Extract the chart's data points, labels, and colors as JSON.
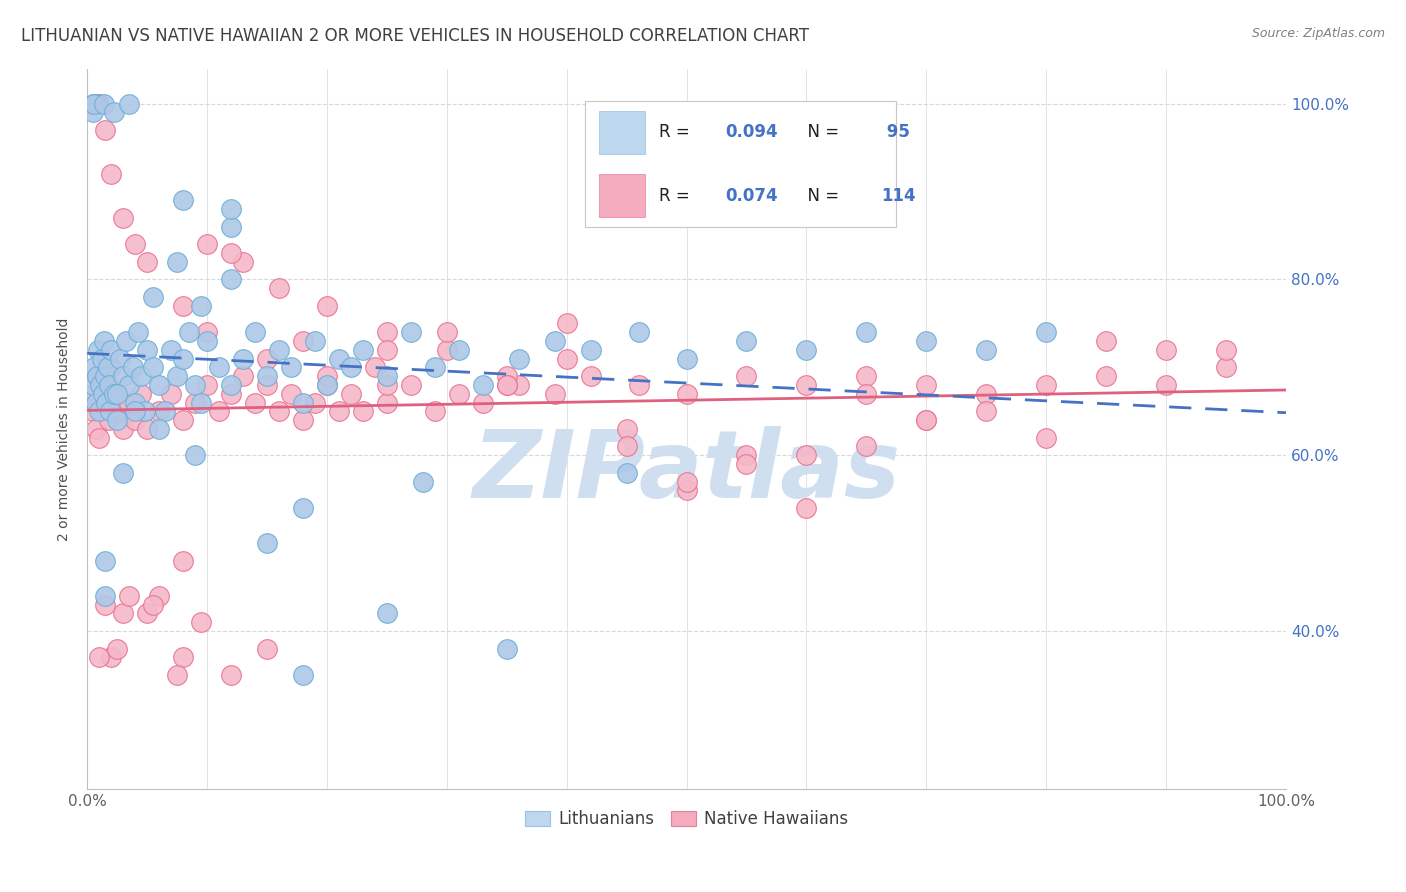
{
  "title": "LITHUANIAN VS NATIVE HAWAIIAN 2 OR MORE VEHICLES IN HOUSEHOLD CORRELATION CHART",
  "source": "Source: ZipAtlas.com",
  "ylabel": "2 or more Vehicles in Household",
  "ytick_labels": [
    "40.0%",
    "60.0%",
    "80.0%",
    "100.0%"
  ],
  "legend_label_blue": "Lithuanians",
  "legend_label_pink": "Native Hawaiians",
  "blue_scatter_edge": "#6BAED6",
  "blue_scatter_face": "#AEC8E8",
  "pink_scatter_edge": "#E87090",
  "pink_scatter_face": "#F4B8C8",
  "blue_line_color": "#4472C4",
  "pink_line_color": "#E06080",
  "blue_legend_face": "#BDD7EE",
  "blue_legend_edge": "#9DC0E0",
  "pink_legend_face": "#F4ACBE",
  "pink_legend_edge": "#E080A0",
  "watermark_color": "#D0DFF0",
  "background_color": "#FFFFFF",
  "grid_color": "#D8D8D8",
  "r_value_color": "#4472C4",
  "title_color": "#404040",
  "source_color": "#808080",
  "ylabel_color": "#505050",
  "N_blue": 95,
  "N_pink": 114,
  "R_blue": 0.094,
  "R_pink": 0.074,
  "xmin": 0.0,
  "xmax": 1.0,
  "ymin": 0.22,
  "ymax": 1.04,
  "yticks": [
    0.4,
    0.6,
    0.8,
    1.0
  ],
  "xtick_positions": [
    0.0,
    0.1,
    0.2,
    0.3,
    0.4,
    0.5,
    0.6,
    0.7,
    0.8,
    0.9,
    1.0
  ],
  "blue_x": [
    0.005,
    0.006,
    0.007,
    0.008,
    0.009,
    0.01,
    0.011,
    0.012,
    0.013,
    0.014,
    0.015,
    0.016,
    0.017,
    0.018,
    0.019,
    0.02,
    0.022,
    0.025,
    0.027,
    0.03,
    0.032,
    0.035,
    0.038,
    0.04,
    0.042,
    0.045,
    0.048,
    0.05,
    0.055,
    0.06,
    0.065,
    0.07,
    0.075,
    0.08,
    0.085,
    0.09,
    0.095,
    0.1,
    0.11,
    0.12,
    0.13,
    0.14,
    0.15,
    0.16,
    0.17,
    0.18,
    0.19,
    0.2,
    0.21,
    0.22,
    0.23,
    0.25,
    0.27,
    0.29,
    0.31,
    0.33,
    0.36,
    0.39,
    0.42,
    0.46,
    0.5,
    0.55,
    0.6,
    0.65,
    0.7,
    0.75,
    0.8,
    0.12,
    0.08,
    0.03,
    0.015,
    0.007,
    0.005,
    0.005,
    0.006,
    0.014,
    0.022,
    0.035,
    0.055,
    0.075,
    0.095,
    0.12,
    0.15,
    0.18,
    0.25,
    0.35,
    0.45,
    0.28,
    0.18,
    0.12,
    0.09,
    0.06,
    0.04,
    0.025,
    0.015
  ],
  "blue_y": [
    0.68,
    0.7,
    0.66,
    0.69,
    0.72,
    0.65,
    0.68,
    0.71,
    0.67,
    0.73,
    0.69,
    0.66,
    0.7,
    0.68,
    0.65,
    0.72,
    0.67,
    0.64,
    0.71,
    0.69,
    0.73,
    0.68,
    0.7,
    0.66,
    0.74,
    0.69,
    0.65,
    0.72,
    0.7,
    0.68,
    0.65,
    0.72,
    0.69,
    0.71,
    0.74,
    0.68,
    0.66,
    0.73,
    0.7,
    0.68,
    0.71,
    0.74,
    0.69,
    0.72,
    0.7,
    0.66,
    0.73,
    0.68,
    0.71,
    0.7,
    0.72,
    0.69,
    0.74,
    0.7,
    0.72,
    0.68,
    0.71,
    0.73,
    0.72,
    0.74,
    0.71,
    0.73,
    0.72,
    0.74,
    0.73,
    0.72,
    0.74,
    0.86,
    0.89,
    0.58,
    0.44,
    1.0,
    1.0,
    0.99,
    1.0,
    1.0,
    0.99,
    1.0,
    0.78,
    0.82,
    0.77,
    0.8,
    0.5,
    0.54,
    0.42,
    0.38,
    0.58,
    0.57,
    0.35,
    0.88,
    0.6,
    0.63,
    0.65,
    0.67,
    0.48
  ],
  "pink_x": [
    0.005,
    0.006,
    0.007,
    0.008,
    0.009,
    0.01,
    0.012,
    0.015,
    0.018,
    0.02,
    0.025,
    0.03,
    0.035,
    0.04,
    0.045,
    0.05,
    0.06,
    0.07,
    0.08,
    0.09,
    0.1,
    0.11,
    0.12,
    0.13,
    0.14,
    0.15,
    0.16,
    0.17,
    0.18,
    0.19,
    0.2,
    0.21,
    0.22,
    0.23,
    0.25,
    0.27,
    0.29,
    0.31,
    0.33,
    0.36,
    0.39,
    0.42,
    0.46,
    0.5,
    0.55,
    0.6,
    0.65,
    0.7,
    0.75,
    0.8,
    0.85,
    0.9,
    0.95,
    0.1,
    0.08,
    0.05,
    0.03,
    0.02,
    0.015,
    0.01,
    0.008,
    0.006,
    0.04,
    0.06,
    0.08,
    0.1,
    0.13,
    0.16,
    0.2,
    0.25,
    0.3,
    0.4,
    0.5,
    0.6,
    0.7,
    0.8,
    0.9,
    0.15,
    0.2,
    0.25,
    0.3,
    0.35,
    0.4,
    0.45,
    0.5,
    0.55,
    0.6,
    0.65,
    0.7,
    0.12,
    0.18,
    0.24,
    0.35,
    0.45,
    0.55,
    0.65,
    0.75,
    0.85,
    0.95,
    0.35,
    0.25,
    0.15,
    0.08,
    0.05,
    0.03,
    0.02,
    0.01,
    0.015,
    0.025,
    0.035,
    0.055,
    0.075,
    0.095,
    0.12
  ],
  "pink_y": [
    0.65,
    0.67,
    0.63,
    0.66,
    0.69,
    0.62,
    0.65,
    0.68,
    0.64,
    0.7,
    0.65,
    0.63,
    0.66,
    0.64,
    0.67,
    0.63,
    0.65,
    0.67,
    0.64,
    0.66,
    0.68,
    0.65,
    0.67,
    0.69,
    0.66,
    0.68,
    0.65,
    0.67,
    0.64,
    0.66,
    0.68,
    0.65,
    0.67,
    0.65,
    0.66,
    0.68,
    0.65,
    0.67,
    0.66,
    0.68,
    0.67,
    0.69,
    0.68,
    0.67,
    0.69,
    0.68,
    0.69,
    0.68,
    0.67,
    0.68,
    0.69,
    0.68,
    0.7,
    0.74,
    0.77,
    0.82,
    0.87,
    0.92,
    0.97,
    1.0,
    1.0,
    1.0,
    0.84,
    0.44,
    0.48,
    0.84,
    0.82,
    0.79,
    0.77,
    0.74,
    0.72,
    0.75,
    0.56,
    0.6,
    0.64,
    0.62,
    0.72,
    0.71,
    0.69,
    0.72,
    0.74,
    0.69,
    0.71,
    0.63,
    0.57,
    0.6,
    0.54,
    0.61,
    0.64,
    0.83,
    0.73,
    0.7,
    0.68,
    0.61,
    0.59,
    0.67,
    0.65,
    0.73,
    0.72,
    0.68,
    0.68,
    0.38,
    0.37,
    0.42,
    0.42,
    0.37,
    0.37,
    0.43,
    0.38,
    0.44,
    0.43,
    0.35,
    0.41,
    0.35
  ]
}
